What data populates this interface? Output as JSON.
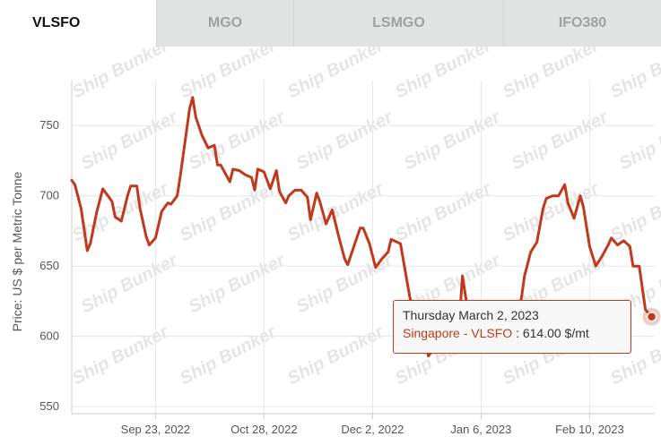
{
  "tabs": [
    {
      "label": "VLSFO",
      "active": true
    },
    {
      "label": "MGO",
      "active": false
    },
    {
      "label": "LSMGO",
      "active": false
    },
    {
      "label": "IFO380",
      "active": false
    }
  ],
  "watermark": "Ship Bunker",
  "tooltip": {
    "date": "Thursday March 2, 2023",
    "series": "Singapore - VLSFO",
    "value": ": 614.00 $/mt"
  },
  "colors": {
    "series": "#c0391b",
    "grid": "#e6e6e6",
    "axis": "#555555"
  },
  "chart_data": {
    "type": "line",
    "ylabel": "Price: US $ per Metric Tonne",
    "ylim": [
      545,
      782
    ],
    "yticks": [
      550,
      600,
      650,
      700,
      750
    ],
    "xlim": [
      "2022-08-27",
      "2023-03-03"
    ],
    "xticks": [
      {
        "date": "2022-09-23",
        "label": "Sep 23, 2022"
      },
      {
        "date": "2022-10-28",
        "label": "Oct 28, 2022"
      },
      {
        "date": "2022-12-02",
        "label": "Dec 2, 2022"
      },
      {
        "date": "2023-01-06",
        "label": "Jan 6, 2023"
      },
      {
        "date": "2023-02-10",
        "label": "Feb 10, 2023"
      }
    ],
    "grid": true,
    "series": [
      {
        "name": "Singapore - VLSFO",
        "x": [
          "2022-08-27",
          "2022-08-28",
          "2022-08-30",
          "2022-09-01",
          "2022-09-02",
          "2022-09-04",
          "2022-09-06",
          "2022-09-08",
          "2022-09-09",
          "2022-09-10",
          "2022-09-12",
          "2022-09-14",
          "2022-09-15",
          "2022-09-17",
          "2022-09-18",
          "2022-09-20",
          "2022-09-21",
          "2022-09-23",
          "2022-09-25",
          "2022-09-27",
          "2022-09-28",
          "2022-09-30",
          "2022-10-01",
          "2022-10-04",
          "2022-10-05",
          "2022-10-06",
          "2022-10-08",
          "2022-10-10",
          "2022-10-12",
          "2022-10-13",
          "2022-10-14",
          "2022-10-17",
          "2022-10-18",
          "2022-10-20",
          "2022-10-22",
          "2022-10-24",
          "2022-10-25",
          "2022-10-26",
          "2022-10-28",
          "2022-10-30",
          "2022-11-01",
          "2022-11-02",
          "2022-11-04",
          "2022-11-05",
          "2022-11-07",
          "2022-11-09",
          "2022-11-11",
          "2022-11-12",
          "2022-11-14",
          "2022-11-15",
          "2022-11-17",
          "2022-11-19",
          "2022-11-21",
          "2022-11-23",
          "2022-11-24",
          "2022-11-26",
          "2022-11-28",
          "2022-11-29",
          "2022-12-01",
          "2022-12-03",
          "2022-12-05",
          "2022-12-07",
          "2022-12-08",
          "2022-12-10",
          "2022-12-11",
          "2022-12-14",
          "2022-12-16",
          "2022-12-18",
          "2022-12-20",
          "2022-12-21",
          "2022-12-23",
          "2022-12-26",
          "2022-12-28",
          "2022-12-30",
          "2022-12-31",
          "2023-01-02",
          "2023-01-04",
          "2023-01-06",
          "2023-01-08",
          "2023-01-10",
          "2023-01-11",
          "2023-01-13",
          "2023-01-15",
          "2023-01-17",
          "2023-01-19",
          "2023-01-20",
          "2023-01-22",
          "2023-01-24",
          "2023-01-26",
          "2023-01-27",
          "2023-01-29",
          "2023-01-31",
          "2023-02-02",
          "2023-02-03",
          "2023-02-05",
          "2023-02-07",
          "2023-02-08",
          "2023-02-10",
          "2023-02-12",
          "2023-02-14",
          "2023-02-16",
          "2023-02-17",
          "2023-02-19",
          "2023-02-21",
          "2023-02-23",
          "2023-02-24",
          "2023-02-26",
          "2023-02-28",
          "2023-03-02"
        ],
        "values": [
          711,
          708,
          691,
          661,
          666,
          688,
          705,
          699,
          696,
          685,
          682,
          700,
          707,
          707,
          691,
          671,
          665,
          670,
          689,
          695,
          694,
          700,
          714,
          762,
          770,
          756,
          743,
          734,
          736,
          722,
          722,
          710,
          719,
          718,
          715,
          713,
          704,
          719,
          717,
          705,
          718,
          703,
          695,
          700,
          704,
          704,
          699,
          683,
          702,
          696,
          680,
          690,
          672,
          655,
          651,
          664,
          677,
          677,
          666,
          649,
          655,
          660,
          669,
          667,
          666,
          628,
          610,
          607,
          586,
          589,
          602,
          594,
          612,
          611,
          643,
          614,
          603,
          597,
          594,
          590,
          594,
          592,
          597,
          610,
          627,
          643,
          660,
          667,
          691,
          698,
          700,
          700,
          708,
          695,
          684,
          700,
          692,
          664,
          650,
          657,
          665,
          670,
          665,
          668,
          664,
          650,
          650,
          619,
          614
        ]
      }
    ]
  }
}
